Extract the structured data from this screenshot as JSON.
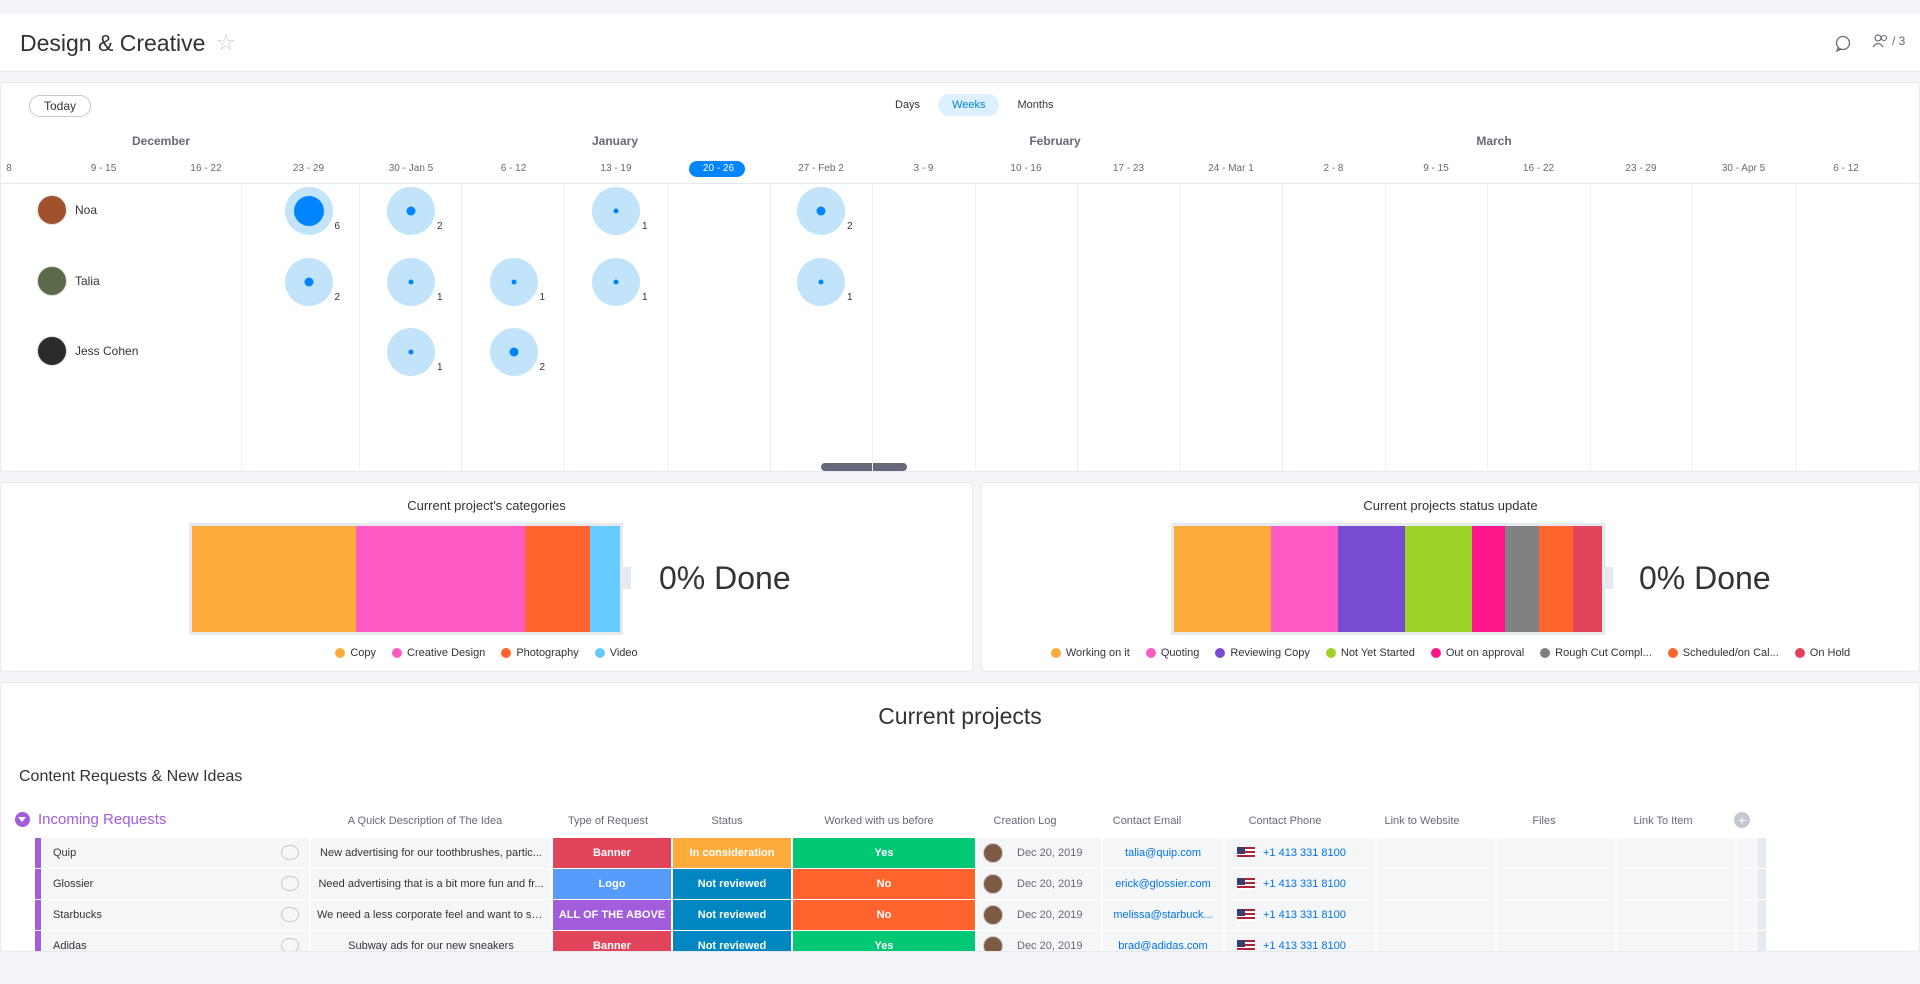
{
  "header": {
    "title": "Design & Creative",
    "people_count": "/ 3"
  },
  "workload": {
    "today_label": "Today",
    "view_tabs": [
      "Days",
      "Weeks",
      "Months"
    ],
    "active_view": "Weeks",
    "months": [
      "December",
      "January",
      "February",
      "March"
    ],
    "weeks": [
      "8",
      "9 - 15",
      "16 - 22",
      "23 - 29",
      "30 - Jan 5",
      "6 - 12",
      "13 - 19",
      "20 - 26",
      "27 - Feb 2",
      "3 - 9",
      "10 - 16",
      "17 - 23",
      "24 - Mar 1",
      "2 - 8",
      "9 - 15",
      "16 - 22",
      "23 - 29",
      "30 - Apr 5",
      "6 - 12"
    ],
    "current_week": "20 - 26",
    "people": [
      {
        "name": "Noa",
        "items": [
          {
            "week": "23 - 29",
            "count": "6"
          },
          {
            "week": "30 - Jan 5",
            "count": "2"
          },
          {
            "week": "13 - 19",
            "count": "1"
          },
          {
            "week": "27 - Feb 2",
            "count": "2"
          }
        ]
      },
      {
        "name": "Talia",
        "items": [
          {
            "week": "23 - 29",
            "count": "2"
          },
          {
            "week": "30 - Jan 5",
            "count": "1"
          },
          {
            "week": "6 - 12",
            "count": "1"
          },
          {
            "week": "13 - 19",
            "count": "1"
          },
          {
            "week": "27 - Feb 2",
            "count": "1"
          }
        ]
      },
      {
        "name": "Jess Cohen",
        "items": [
          {
            "week": "30 - Jan 5",
            "count": "1"
          },
          {
            "week": "6 - 12",
            "count": "2"
          }
        ]
      }
    ]
  },
  "chart_data": [
    {
      "type": "bar",
      "title": "Current project's categories",
      "done_label": "0% Done",
      "categories": [
        "Copy",
        "Creative Design",
        "Photography",
        "Video"
      ],
      "values": [
        38,
        39,
        15,
        7
      ],
      "colors": [
        "#fdab3d",
        "#ff5ac4",
        "#ff642e",
        "#66ccff"
      ]
    },
    {
      "type": "bar",
      "title": "Current projects status update",
      "done_label": "0% Done",
      "categories": [
        "Working on it",
        "Quoting",
        "Reviewing Copy",
        "Not Yet Started",
        "Out on approval",
        "Rough Cut Compl...",
        "Scheduled/on Cal...",
        "On Hold"
      ],
      "values": [
        23,
        16,
        16,
        16,
        8,
        8,
        8,
        7
      ],
      "colors": [
        "#fdab3d",
        "#ff5ac4",
        "#784bd1",
        "#9cd326",
        "#ff158a",
        "#808080",
        "#ff642e",
        "#e2445c"
      ]
    }
  ],
  "projects": {
    "title": "Current projects",
    "group_title": "Content Requests & New Ideas",
    "group_name": "Incoming Requests",
    "columns": [
      "A Quick Description of The Idea",
      "Type of Request",
      "Status",
      "Worked with us before",
      "Creation Log",
      "Contact Email",
      "Contact Phone",
      "Link to Website",
      "Files",
      "Link To Item"
    ],
    "rows": [
      {
        "name": "Quip",
        "desc": "New advertising for our toothbrushes, partic...",
        "type": "Banner",
        "type_color": "#e2445c",
        "status": "In consideration",
        "status_color": "#fdab3d",
        "worked": "Yes",
        "worked_color": "#00c875",
        "log": "Dec 20, 2019",
        "email": "talia@quip.com",
        "phone": "+1 413 331 8100"
      },
      {
        "name": "Glossier",
        "desc": "Need advertising that is a bit more fun and fr...",
        "type": "Logo",
        "type_color": "#579bfc",
        "status": "Not reviewed",
        "status_color": "#0086c0",
        "worked": "No",
        "worked_color": "#ff642e",
        "log": "Dec 20, 2019",
        "email": "erick@glossier.com",
        "phone": "+1 413 331 8100"
      },
      {
        "name": "Starbucks",
        "desc": "We need a less corporate feel and want to se...",
        "type": "ALL OF THE ABOVE",
        "type_color": "#a25ddc",
        "status": "Not reviewed",
        "status_color": "#0086c0",
        "worked": "No",
        "worked_color": "#ff642e",
        "log": "Dec 20, 2019",
        "email": "melissa@starbuck...",
        "phone": "+1 413 331 8100"
      },
      {
        "name": "Adidas",
        "desc": "Subway ads for our new sneakers",
        "type": "Banner",
        "type_color": "#e2445c",
        "status": "Not reviewed",
        "status_color": "#0086c0",
        "worked": "Yes",
        "worked_color": "#00c875",
        "log": "Dec 20, 2019",
        "email": "brad@adidas.com",
        "phone": "+1 413 331 8100"
      }
    ]
  }
}
